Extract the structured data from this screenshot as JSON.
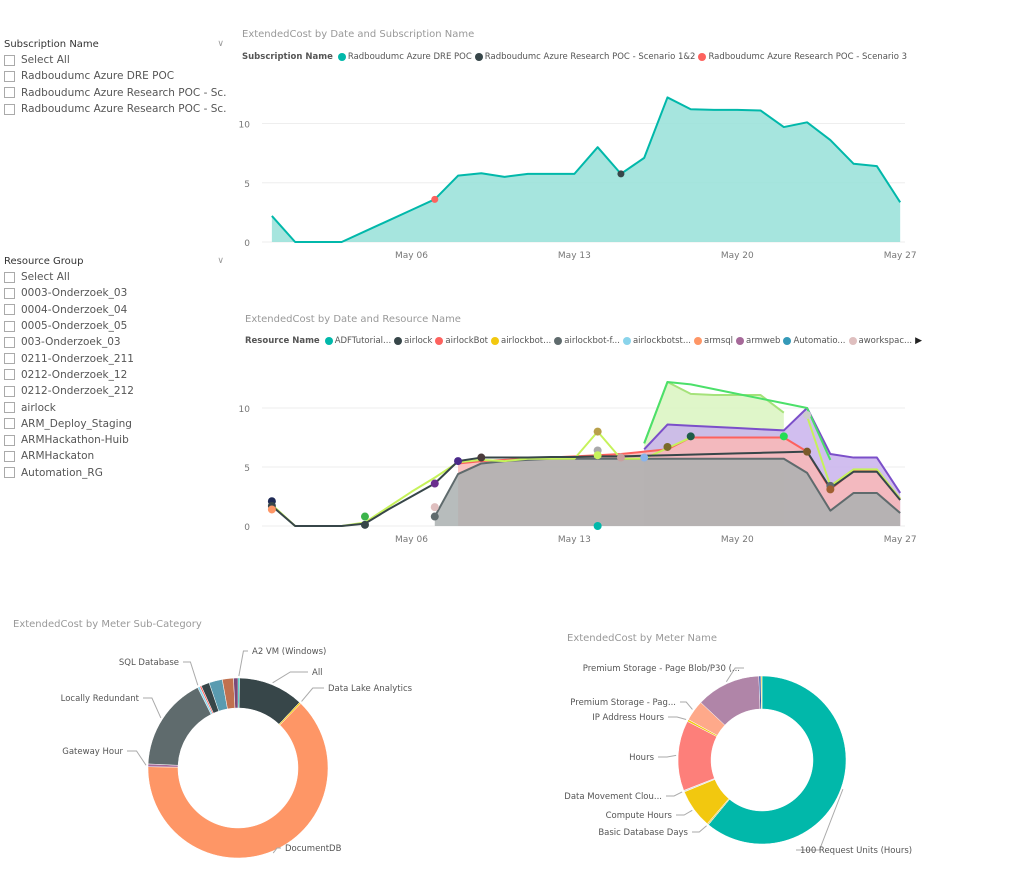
{
  "slicers": {
    "subscription": {
      "title": "Subscription Name",
      "items": [
        "Select All",
        "Radboudumc Azure DRE POC",
        "Radboudumc Azure Research POC - Sc...",
        "Radboudumc Azure Research POC - Sc..."
      ]
    },
    "resource_group": {
      "title": "Resource Group",
      "items": [
        "Select All",
        "0003-Onderzoek_03",
        "0004-Onderzoek_04",
        "0005-Onderzoek_05",
        "003-Onderzoek_03",
        "0211-Onderzoek_211",
        "0212-Onderzoek_12",
        "0212-Onderzoek_212",
        "airlock",
        "ARM_Deploy_Staging",
        "ARMHackathon-Huib",
        "ARMHackaton",
        "Automation_RG"
      ]
    }
  },
  "chart_data": [
    {
      "type": "area",
      "title": "ExtendedCost by Date and Subscription Name",
      "legend_title": "Subscription Name",
      "legend_position": "top-left",
      "legend": [
        {
          "name": "Radboudumc Azure DRE POC",
          "color": "#01B8AA"
        },
        {
          "name": "Radboudumc Azure Research POC - Scenario 1&2",
          "color": "#374649"
        },
        {
          "name": "Radboudumc Azure Research POC - Scenario 3",
          "color": "#FD625E"
        }
      ],
      "x": [
        "Apr 30",
        "May 01",
        "May 02",
        "May 03",
        "May 04",
        "May 05",
        "May 06",
        "May 07",
        "May 08",
        "May 09",
        "May 10",
        "May 11",
        "May 12",
        "May 13",
        "May 14",
        "May 15",
        "May 16",
        "May 17",
        "May 18",
        "May 19",
        "May 20",
        "May 21",
        "May 22",
        "May 23",
        "May 24",
        "May 25",
        "May 26",
        "May 27"
      ],
      "x_ticks": [
        "May 06",
        "May 13",
        "May 20",
        "May 27"
      ],
      "y_ticks": [
        "0",
        "5",
        "10"
      ],
      "ylim": [
        0,
        13
      ],
      "grid": true,
      "series": [
        {
          "name": "Radboudumc Azure DRE POC",
          "color": "#01B8AA",
          "values": [
            2.2,
            0,
            0,
            0,
            0.9,
            1.8,
            2.7,
            3.6,
            5.6,
            5.8,
            5.5,
            5.75,
            5.75,
            5.75,
            8.0,
            5.75,
            7.1,
            12.2,
            11.2,
            11.15,
            11.15,
            11.1,
            9.7,
            10.1,
            8.6,
            6.6,
            6.4,
            3.35
          ]
        }
      ],
      "points": [
        {
          "series": "Radboudumc Azure Research POC - Scenario 3",
          "x": "May 07",
          "y": 3.6,
          "color": "#FD625E"
        },
        {
          "series": "Radboudumc Azure Research POC - Scenario 1&2",
          "x": "May 15",
          "y": 5.75,
          "color": "#374649"
        }
      ]
    },
    {
      "type": "area",
      "title": "ExtendedCost by Date and Resource Name",
      "legend_title": "Resource Name",
      "legend_position": "top-left",
      "legend": [
        {
          "name": "ADFTutorial...",
          "color": "#01B8AA"
        },
        {
          "name": "airlock",
          "color": "#374649"
        },
        {
          "name": "airlockBot",
          "color": "#FD625E"
        },
        {
          "name": "airlockbot...",
          "color": "#F2C80F"
        },
        {
          "name": "airlockbot-f...",
          "color": "#5F6B6D"
        },
        {
          "name": "airlockbotst...",
          "color": "#8AD4EB"
        },
        {
          "name": "armsql",
          "color": "#FE9666"
        },
        {
          "name": "armweb",
          "color": "#A66999"
        },
        {
          "name": "Automatio...",
          "color": "#3599B8"
        },
        {
          "name": "aworkspac...",
          "color": "#DFBFBF"
        }
      ],
      "legend_more_icon": "triangle-right-icon",
      "x_ticks": [
        "May 06",
        "May 13",
        "May 20",
        "May 27"
      ],
      "y_ticks": [
        "0",
        "5",
        "10"
      ],
      "ylim": [
        0,
        13
      ],
      "grid": true,
      "series": [
        {
          "color": "#A5E27A",
          "fill": "#D9F5C0",
          "kind": "area",
          "values": [
            null,
            null,
            null,
            null,
            null,
            null,
            null,
            null,
            null,
            null,
            null,
            null,
            null,
            null,
            null,
            null,
            7.0,
            12.2,
            11.2,
            11.1,
            11.1,
            11.1,
            9.6,
            null,
            null,
            null,
            null,
            null
          ]
        },
        {
          "color": "#7B4FC9",
          "fill": "#C9B3EC",
          "kind": "area",
          "values": [
            null,
            null,
            null,
            null,
            null,
            null,
            null,
            null,
            null,
            null,
            null,
            null,
            null,
            null,
            null,
            null,
            6.5,
            8.6,
            8.5,
            8.4,
            8.3,
            8.2,
            8.1,
            10.0,
            6.1,
            5.8,
            5.8,
            2.8
          ]
        },
        {
          "name": "airlockBot",
          "color": "#FD625E",
          "fill": "#F9B9B6",
          "kind": "area",
          "values": [
            null,
            null,
            null,
            null,
            null,
            null,
            null,
            null,
            5.3,
            5.5,
            5.6,
            5.7,
            5.8,
            5.9,
            6.0,
            6.1,
            6.3,
            6.5,
            7.5,
            7.5,
            7.5,
            7.5,
            7.5,
            6.3,
            3.1,
            4.7,
            4.7,
            2.3
          ]
        },
        {
          "name": "airlockbot-f...",
          "color": "#5F6B6D",
          "fill": "#AAB0B0",
          "kind": "area",
          "values": [
            null,
            null,
            null,
            null,
            null,
            null,
            null,
            0.8,
            4.4,
            5.3,
            5.5,
            5.6,
            5.7,
            5.7,
            5.7,
            5.7,
            5.7,
            5.7,
            5.7,
            5.7,
            5.7,
            5.7,
            5.7,
            4.5,
            1.3,
            2.8,
            2.8,
            1.1
          ]
        },
        {
          "color": "#C6F25B",
          "kind": "line",
          "values": [
            1.8,
            0,
            0,
            0,
            0.3,
            1.6,
            2.9,
            4.1,
            5.4,
            5.6,
            5.5,
            5.7,
            5.7,
            5.7,
            8.0,
            5.7,
            5.7,
            6.6,
            7.5,
            null,
            null,
            null,
            null,
            9.3,
            3.4,
            4.8,
            4.8,
            2.3
          ]
        },
        {
          "color": "#4CE06A",
          "kind": "line",
          "values": [
            null,
            null,
            null,
            null,
            null,
            null,
            null,
            null,
            null,
            null,
            null,
            null,
            null,
            null,
            null,
            null,
            7.0,
            12.2,
            12.0,
            11.6,
            11.2,
            10.8,
            10.4,
            10.0,
            5.6,
            null,
            null,
            null
          ]
        },
        {
          "name": "airlock",
          "color": "#374649",
          "kind": "line",
          "values": [
            1.7,
            0,
            0,
            0,
            0.2,
            1.4,
            2.5,
            3.6,
            5.5,
            5.8,
            5.8,
            5.8,
            5.85,
            5.85,
            5.9,
            5.9,
            5.95,
            6.0,
            6.05,
            6.1,
            6.15,
            6.2,
            6.25,
            6.3,
            3.2,
            4.6,
            4.6,
            2.2
          ]
        }
      ],
      "points": [
        {
          "x": "Apr 30",
          "y": 2.1,
          "color": "#1F2A55"
        },
        {
          "x": "Apr 30",
          "y": 1.7,
          "color": "#374649"
        },
        {
          "x": "Apr 30",
          "y": 1.4,
          "color": "#FE9666"
        },
        {
          "x": "May 04",
          "y": 0.8,
          "color": "#3CB44B"
        },
        {
          "x": "May 04",
          "y": 0.1,
          "color": "#374649"
        },
        {
          "x": "May 07",
          "y": 3.6,
          "color": "#6B2E8E"
        },
        {
          "x": "May 07",
          "y": 1.6,
          "color": "#DFBFBF"
        },
        {
          "x": "May 07",
          "y": 0.8,
          "color": "#5F6B6D"
        },
        {
          "x": "May 08",
          "y": 5.5,
          "color": "#4B2A8A"
        },
        {
          "x": "May 09",
          "y": 5.8,
          "color": "#4A3B3B"
        },
        {
          "x": "May 14",
          "y": 8.0,
          "color": "#B8A04A"
        },
        {
          "x": "May 14",
          "y": 6.4,
          "color": "#AAAAAA"
        },
        {
          "x": "May 14",
          "y": 6.0,
          "color": "#C6F25B"
        },
        {
          "x": "May 14",
          "y": 0,
          "color": "#01B8AA"
        },
        {
          "x": "May 15",
          "y": 5.8,
          "color": "#C8A0A0"
        },
        {
          "x": "May 16",
          "y": 5.8,
          "color": "#8AB4EB"
        },
        {
          "x": "May 17",
          "y": 6.7,
          "color": "#7A6A2A"
        },
        {
          "x": "May 18",
          "y": 7.6,
          "color": "#1D5C4A"
        },
        {
          "x": "May 22",
          "y": 7.6,
          "color": "#22DD55"
        },
        {
          "x": "May 23",
          "y": 9.4,
          "color": "#CCCCCC"
        },
        {
          "x": "May 23",
          "y": 6.3,
          "color": "#7A5A2A"
        },
        {
          "x": "May 24",
          "y": 3.4,
          "color": "#5F6B6D"
        },
        {
          "x": "May 24",
          "y": 3.1,
          "color": "#A06030"
        }
      ]
    },
    {
      "type": "pie",
      "donut": true,
      "title": "ExtendedCost by Meter Sub-Category",
      "slices": [
        {
          "label": "A2 VM (Windows)",
          "value": 0.3,
          "color": "#01B8AA"
        },
        {
          "label": "All",
          "value": 11.7,
          "color": "#374649"
        },
        {
          "label": "Data Lake Analytics",
          "value": 0.3,
          "color": "#F2C80F"
        },
        {
          "label": "DocumentDB",
          "value": 63.0,
          "color": "#FE9666"
        },
        {
          "label": "Gateway Hour",
          "value": 0.5,
          "color": "#A66999"
        },
        {
          "label": "Locally Redundant",
          "value": 16.9,
          "color": "#5F6B6D"
        },
        {
          "label": "SQL Database",
          "value": 0.4,
          "color": "#8AD4EB"
        },
        {
          "label": "",
          "value": 0.3,
          "color": "#FD625E"
        },
        {
          "label": "",
          "value": 1.5,
          "color": "#374649"
        },
        {
          "label": "",
          "value": 2.4,
          "color": "#5A9BB0"
        },
        {
          "label": "",
          "value": 2.0,
          "color": "#C0714F"
        },
        {
          "label": "",
          "value": 0.8,
          "color": "#7A4A7A"
        }
      ]
    },
    {
      "type": "pie",
      "donut": true,
      "title": "ExtendedCost by Meter Name",
      "slices": [
        {
          "label": "100 Request Units (Hours)",
          "value": 61.0,
          "color": "#01B8AA"
        },
        {
          "label": "Basic Database Days",
          "value": 0.3,
          "color": "#E8D070"
        },
        {
          "label": "Compute Hours",
          "value": 7.5,
          "color": "#F2C80F"
        },
        {
          "label": "Data Movement Clou...",
          "value": 0.3,
          "color": "#DDDDDD"
        },
        {
          "label": "Hours",
          "value": 13.5,
          "color": "#FD7F7A"
        },
        {
          "label": "IP Address Hours",
          "value": 0.4,
          "color": "#F2C80F"
        },
        {
          "label": "Premium Storage - Pag...",
          "value": 4.0,
          "color": "#FEA98A"
        },
        {
          "label": "Premium Storage - Page Blob/P30 (...",
          "value": 12.4,
          "color": "#B085A8"
        },
        {
          "label": "",
          "value": 0.4,
          "color": "#3559A8"
        },
        {
          "label": "",
          "value": 0.2,
          "color": "#F2C80F"
        }
      ]
    }
  ]
}
